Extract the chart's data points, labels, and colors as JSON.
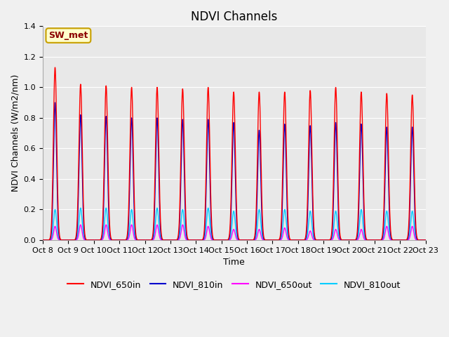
{
  "title": "NDVI Channels",
  "xlabel": "Time",
  "ylabel": "NDVI Channels (W/m2/nm)",
  "ylim": [
    0.0,
    1.4
  ],
  "annotation_text": "SW_met",
  "annotation_fg": "#8b0000",
  "annotation_bg": "#ffffcc",
  "series": {
    "NDVI_650in": {
      "color": "#ff0000",
      "lw": 1.0
    },
    "NDVI_810in": {
      "color": "#0000cc",
      "lw": 1.0
    },
    "NDVI_650out": {
      "color": "#ff00ff",
      "lw": 1.0
    },
    "NDVI_810out": {
      "color": "#00ccff",
      "lw": 1.0
    }
  },
  "tick_labels": [
    "Oct 8",
    "Oct 9",
    "Oct 10",
    "Oct 11",
    "Oct 12",
    "Oct 13",
    "Oct 14",
    "Oct 15",
    "Oct 16",
    "Oct 17",
    "Oct 18",
    "Oct 19",
    "Oct 20",
    "Oct 21",
    "Oct 22",
    "Oct 23"
  ],
  "num_days": 15,
  "peaks_650in": [
    1.13,
    1.02,
    1.01,
    1.0,
    1.0,
    0.99,
    1.0,
    0.97,
    0.97,
    0.97,
    0.98,
    1.0,
    0.97,
    0.96,
    0.95
  ],
  "peaks_810in": [
    0.9,
    0.82,
    0.81,
    0.8,
    0.8,
    0.79,
    0.79,
    0.77,
    0.72,
    0.76,
    0.75,
    0.77,
    0.76,
    0.74,
    0.74
  ],
  "peaks_650out": [
    0.09,
    0.1,
    0.1,
    0.1,
    0.1,
    0.1,
    0.09,
    0.07,
    0.07,
    0.08,
    0.06,
    0.07,
    0.07,
    0.09,
    0.09
  ],
  "peaks_810out": [
    0.2,
    0.21,
    0.21,
    0.2,
    0.21,
    0.2,
    0.21,
    0.19,
    0.2,
    0.2,
    0.19,
    0.19,
    0.2,
    0.19,
    0.19
  ],
  "grid_color": "#d8d8d8",
  "fig_bg": "#f0f0f0",
  "plot_bg": "#e8e8e8",
  "title_fontsize": 12,
  "label_fontsize": 9,
  "tick_fontsize": 8
}
